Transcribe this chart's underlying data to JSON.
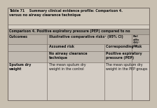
{
  "title_line1": "Table 71    Summary clinical evidence profile: Comparison 4.",
  "title_line2": "versus no airway clearance technique",
  "comp_header": "Comparison 4. Positive expiratory pressure (PEP) compared to no",
  "col1_header": "Outcomes",
  "col2_header": "Illustrative comparative risks² (95% CI)",
  "col3_header": "Rel\neffe\n(95°\nCI)",
  "sub_col2a": "Assumed risk",
  "sub_col2b": "Corresponding risk",
  "sub_col2a2": "No airway clearance\ntechnique",
  "sub_col2b2": "Positive expiratory\npressure (PEP)",
  "row1_col1": "Sputum dry\nweight",
  "row1_col2a": "The mean sputum dry\nweight in the control",
  "row1_col2b": "The mean sputum dry\nweight in the PEP groups",
  "outer_bg": "#c8bfb0",
  "title_bg": "#c8bfb0",
  "comp_header_bg": "#9e9585",
  "col_header_bg": "#9e9585",
  "sub_header_bg": "#b5aca0",
  "data_bg": "#dbd5cc",
  "border_color": "#7a7068",
  "text_color": "#000000",
  "bold_text": "#1a1a1a"
}
